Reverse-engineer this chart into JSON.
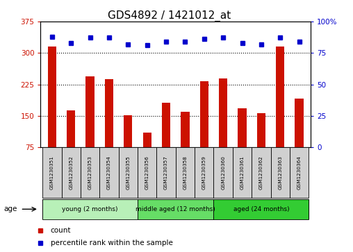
{
  "title": "GDS4892 / 1421012_at",
  "samples": [
    "GSM1230351",
    "GSM1230352",
    "GSM1230353",
    "GSM1230354",
    "GSM1230355",
    "GSM1230356",
    "GSM1230357",
    "GSM1230358",
    "GSM1230359",
    "GSM1230360",
    "GSM1230361",
    "GSM1230362",
    "GSM1230363",
    "GSM1230364"
  ],
  "counts": [
    315,
    163,
    245,
    238,
    152,
    110,
    182,
    160,
    232,
    240,
    168,
    157,
    315,
    192
  ],
  "percentiles": [
    88,
    83,
    87,
    87,
    82,
    81,
    84,
    84,
    86,
    87,
    83,
    82,
    87,
    84
  ],
  "ylim_left": [
    75,
    375
  ],
  "ylim_right": [
    0,
    100
  ],
  "yticks_left": [
    75,
    150,
    225,
    300,
    375
  ],
  "yticks_right": [
    0,
    25,
    50,
    75,
    100
  ],
  "grid_lines": [
    150,
    225,
    300
  ],
  "groups": [
    {
      "label": "young (2 months)",
      "start": 0,
      "end": 5,
      "color": "#b8f0b8"
    },
    {
      "label": "middle aged (12 months)",
      "start": 5,
      "end": 9,
      "color": "#66dd66"
    },
    {
      "label": "aged (24 months)",
      "start": 9,
      "end": 14,
      "color": "#33cc33"
    }
  ],
  "bar_color": "#CC1100",
  "dot_color": "#0000CC",
  "title_fontsize": 11,
  "tick_fontsize": 7.5,
  "bar_width": 0.45,
  "age_label": "age",
  "legend_count_label": "count",
  "legend_percentile_label": "percentile rank within the sample",
  "gray_cell_color": "#d0d0d0",
  "pct_sign_right": "100%",
  "right_tick_labels": [
    "0",
    "25",
    "50",
    "75",
    "100%"
  ]
}
